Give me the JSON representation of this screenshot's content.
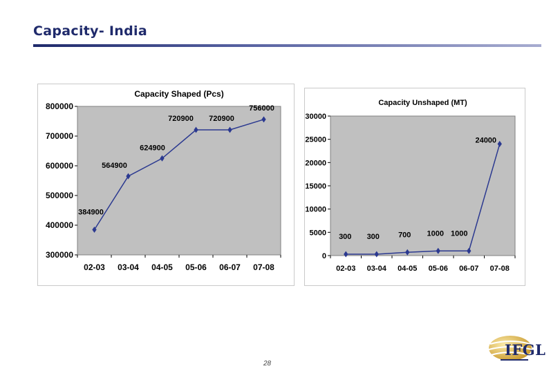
{
  "page": {
    "title": "Capacity- India",
    "page_number": "28",
    "logo_text": "IFGL"
  },
  "colors": {
    "title": "#1f2a6b",
    "line": "#2b3990",
    "plot_area": "#c0c0c0",
    "gridline": "#ffffff",
    "logo_gold": "#d9b44a"
  },
  "chart_data": [
    {
      "type": "line",
      "title": "Capacity Shaped (Pcs)",
      "categories": [
        "02-03",
        "03-04",
        "04-05",
        "05-06",
        "06-07",
        "07-08"
      ],
      "values": [
        384900,
        564900,
        624900,
        720900,
        720900,
        756000
      ],
      "data_labels": [
        "384900",
        "564900",
        "624900",
        "720900",
        "720900",
        "756000"
      ],
      "yticks": [
        300000,
        400000,
        500000,
        600000,
        700000,
        800000
      ],
      "ytick_labels": [
        "300000",
        "400000",
        "500000",
        "600000",
        "700000",
        "800000"
      ],
      "ylim": [
        300000,
        800000
      ],
      "grid": false,
      "legend": "none"
    },
    {
      "type": "line",
      "title": "Capacity Unshaped (MT)",
      "categories": [
        "02-03",
        "03-04",
        "04-05",
        "05-06",
        "06-07",
        "07-08"
      ],
      "values": [
        300,
        300,
        700,
        1000,
        1000,
        24000
      ],
      "data_labels": [
        "300",
        "300",
        "700",
        "1000",
        "1000",
        "24000"
      ],
      "yticks": [
        0,
        5000,
        10000,
        15000,
        20000,
        25000,
        30000
      ],
      "ytick_labels": [
        "0",
        "5000",
        "10000",
        "15000",
        "20000",
        "25000",
        "30000"
      ],
      "ylim": [
        0,
        30000
      ],
      "grid": false,
      "legend": "none"
    }
  ]
}
